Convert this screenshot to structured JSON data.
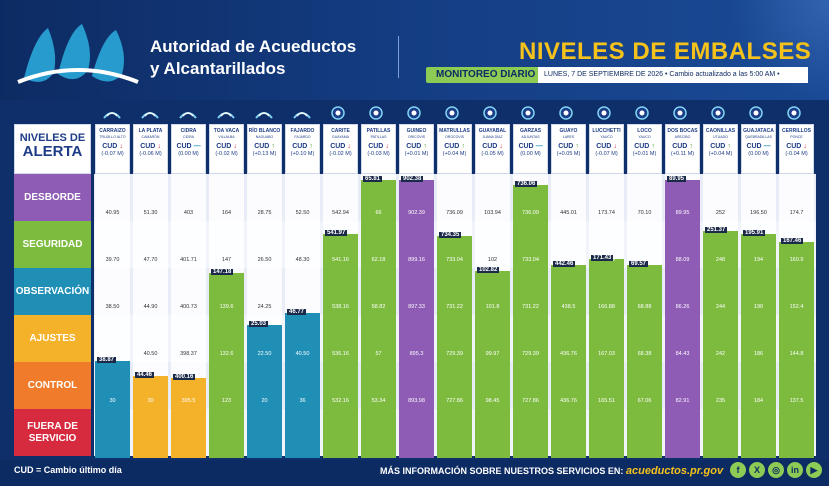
{
  "header": {
    "agency_line1": "Autoridad de Acueductos",
    "agency_line2": "y Alcantarillados",
    "title_part1": "NIVELES DE",
    "title_part2": "EMBALSES",
    "monitoring_label": "MONITOREO DIARIO",
    "date_text": "LUNES, 7 DE SEPTIEMBRE DE 2026 • Cambio actualizado a las 5:00 AM •"
  },
  "levels_header": {
    "line1": "NIVELES DE",
    "line2": "ALERTA"
  },
  "levels": [
    {
      "label": "DESBORDE",
      "color": "#8e5bb5"
    },
    {
      "label": "SEGURIDAD",
      "color": "#7dbb3f"
    },
    {
      "label": "OBSERVACIÓN",
      "color": "#1f8fb6"
    },
    {
      "label": "AJUSTES",
      "color": "#f4b12a"
    },
    {
      "label": "CONTROL",
      "color": "#f07b2a"
    },
    {
      "label": "FUERA DE SERVICIO",
      "color": "#d62a3f"
    }
  ],
  "reservoirs": [
    {
      "name": "CARRAIZO",
      "sub": "TRUJILLO ALTO",
      "cud_label": "CUD",
      "dir": "down",
      "change": "(-0.07 M)",
      "current": "38.87",
      "frac": 0.34,
      "color": "#1f8fb6",
      "icon": "water-drop-icon",
      "thr": [
        "40.95",
        "39.70",
        "38.50",
        "37.00",
        "30"
      ]
    },
    {
      "name": "LA PLATA",
      "sub": "CAMARÓN",
      "cud_label": "CUD",
      "dir": "down",
      "change": "(-0.06 M)",
      "current": "44.46",
      "frac": 0.29,
      "color": "#f4b12a",
      "icon": "water-drop-icon",
      "thr": [
        "51.30",
        "47.70",
        "44.90",
        "40.50",
        "30"
      ]
    },
    {
      "name": "CIDRA",
      "sub": "CIDRA",
      "cud_label": "CUD",
      "dir": "flat",
      "change": "(0.00 M)",
      "current": "400.16",
      "frac": 0.28,
      "color": "#f4b12a",
      "icon": "water-drop-icon",
      "thr": [
        "403",
        "401.71",
        "400.73",
        "398.37",
        "395.5"
      ]
    },
    {
      "name": "TOA VACA",
      "sub": "VILLALBA",
      "cud_label": "CUD",
      "dir": "down",
      "change": "(-0.02 M)",
      "current": "147.18",
      "frac": 0.65,
      "color": "#7dbb3f",
      "icon": "water-drop-icon",
      "thr": [
        "164",
        "147",
        "139.6",
        "132.6",
        "123"
      ]
    },
    {
      "name": "RÍO BLANCO",
      "sub": "NAGUABO",
      "cud_label": "CUD",
      "dir": "up",
      "change": "(+0.13 M)",
      "current": "25.03",
      "frac": 0.47,
      "color": "#1f8fb6",
      "icon": "water-drop-icon",
      "thr": [
        "28.75",
        "26.50",
        "24.25",
        "22.50",
        "20"
      ]
    },
    {
      "name": "FAJARDO",
      "sub": "FAJARDO",
      "cud_label": "CUD",
      "dir": "up",
      "change": "(+0.10 M)",
      "current": "46.77",
      "frac": 0.51,
      "color": "#1f8fb6",
      "icon": "water-drop-icon",
      "thr": [
        "52.50",
        "48.30",
        "44.50",
        "40.50",
        "36"
      ]
    },
    {
      "name": "CARITE",
      "sub": "GUAYAMA",
      "cud_label": "CUD",
      "dir": "down",
      "change": "(-0.02 M)",
      "current": "541.97",
      "frac": 0.79,
      "color": "#7dbb3f",
      "icon": "dam-icon",
      "thr": [
        "542.94",
        "541.16",
        "538.16",
        "536.16",
        "532.16"
      ]
    },
    {
      "name": "PATILLAS",
      "sub": "PATILLAS",
      "cud_label": "CUD",
      "dir": "down",
      "change": "(-0.03 M)",
      "current": "65.81",
      "frac": 0.98,
      "color": "#7dbb3f",
      "icon": "dam-icon",
      "thr": [
        "66",
        "62.18",
        "58.82",
        "57",
        "53.34"
      ]
    },
    {
      "name": "GUINEO",
      "sub": "ORICOVIS",
      "cud_label": "CUD",
      "dir": "up",
      "change": "(+0.01 M)",
      "current": "902.38",
      "frac": 0.98,
      "color": "#8e5bb5",
      "icon": "dam-icon",
      "thr": [
        "902.39",
        "899.16",
        "897.33",
        "895.3",
        "893.98"
      ]
    },
    {
      "name": "MATRULLAS",
      "sub": "OROCOVIS",
      "cud_label": "CUD",
      "dir": "up",
      "change": "(+0.04 M)",
      "current": "734.35",
      "frac": 0.78,
      "color": "#7dbb3f",
      "icon": "dam-icon",
      "thr": [
        "736.09",
        "733.04",
        "731.22",
        "729.39",
        "727.86"
      ]
    },
    {
      "name": "GUAYABAL",
      "sub": "JUANA DÍAZ",
      "cud_label": "CUD",
      "dir": "down",
      "change": "(-0.05 M)",
      "current": "102.82",
      "frac": 0.66,
      "color": "#7dbb3f",
      "icon": "dam-icon",
      "thr": [
        "103.94",
        "102",
        "101.8",
        "99.97",
        "98.45"
      ]
    },
    {
      "name": "GARZAS",
      "sub": "ADJUNTAS",
      "cud_label": "CUD",
      "dir": "flat",
      "change": "(0.00 M)",
      "current": "736.06",
      "frac": 0.96,
      "color": "#7dbb3f",
      "icon": "dam-icon",
      "thr": [
        "736.09",
        "733.04",
        "731.22",
        "729.39",
        "727.86"
      ]
    },
    {
      "name": "GUAYO",
      "sub": "LARES",
      "cud_label": "CUD",
      "dir": "up",
      "change": "(+0.05 M)",
      "current": "442.46",
      "frac": 0.68,
      "color": "#7dbb3f",
      "icon": "dam-icon",
      "thr": [
        "445.01",
        "440.13",
        "438.5",
        "436.76",
        "436.76"
      ]
    },
    {
      "name": "LUCCHETTI",
      "sub": "YAUCO",
      "cud_label": "CUD",
      "dir": "down",
      "change": "(-0.07 M)",
      "current": "171.43",
      "frac": 0.7,
      "color": "#7dbb3f",
      "icon": "dam-icon",
      "thr": [
        "173.74",
        "170.69",
        "166.88",
        "167.03",
        "165.51"
      ]
    },
    {
      "name": "LOCO",
      "sub": "YAUCO",
      "cud_label": "CUD",
      "dir": "up",
      "change": "(+0.01 M)",
      "current": "69.57",
      "frac": 0.68,
      "color": "#7dbb3f",
      "icon": "dam-icon",
      "thr": [
        "70.10",
        "68.88",
        "68.88",
        "68.38",
        "67.06"
      ]
    },
    {
      "name": "DOS BOCAS",
      "sub": "ARECIBO",
      "cud_label": "CUD",
      "dir": "up",
      "change": "(+0.11 M)",
      "current": "89.95",
      "frac": 0.98,
      "color": "#8e5bb5",
      "icon": "dam-icon",
      "thr": [
        "89.95",
        "88.09",
        "86.26",
        "84.43",
        "82.91"
      ]
    },
    {
      "name": "CAONILLAS",
      "sub": "UTUADO",
      "cud_label": "CUD",
      "dir": "up",
      "change": "(+0.04 M)",
      "current": "251.37",
      "frac": 0.8,
      "color": "#7dbb3f",
      "icon": "dam-icon",
      "thr": [
        "252",
        "248",
        "244",
        "242",
        "235"
      ]
    },
    {
      "name": "GUAJATACA",
      "sub": "QUEBRADILLAS",
      "cud_label": "CUD",
      "dir": "flat",
      "change": "(0.00 M)",
      "current": "195.91",
      "frac": 0.79,
      "color": "#7dbb3f",
      "icon": "dam-icon",
      "thr": [
        "196.50",
        "194",
        "190",
        "186",
        "184"
      ]
    },
    {
      "name": "CERRILLOS",
      "sub": "PONCE",
      "cud_label": "CUD",
      "dir": "down",
      "change": "(-0.04 M)",
      "current": "167.46",
      "frac": 0.76,
      "color": "#7dbb3f",
      "icon": "dam-icon",
      "thr": [
        "174.7",
        "160.9",
        "152.4",
        "144.8",
        "137.5"
      ]
    }
  ],
  "footer": {
    "cud_note": "CUD = Cambio último día",
    "more_info": "MÁS INFORMACIÓN SOBRE NUESTROS SERVICIOS EN:",
    "url": "acueductos.pr.gov",
    "social": [
      "facebook-icon",
      "x-icon",
      "instagram-icon",
      "linkedin-icon",
      "youtube-icon"
    ]
  }
}
